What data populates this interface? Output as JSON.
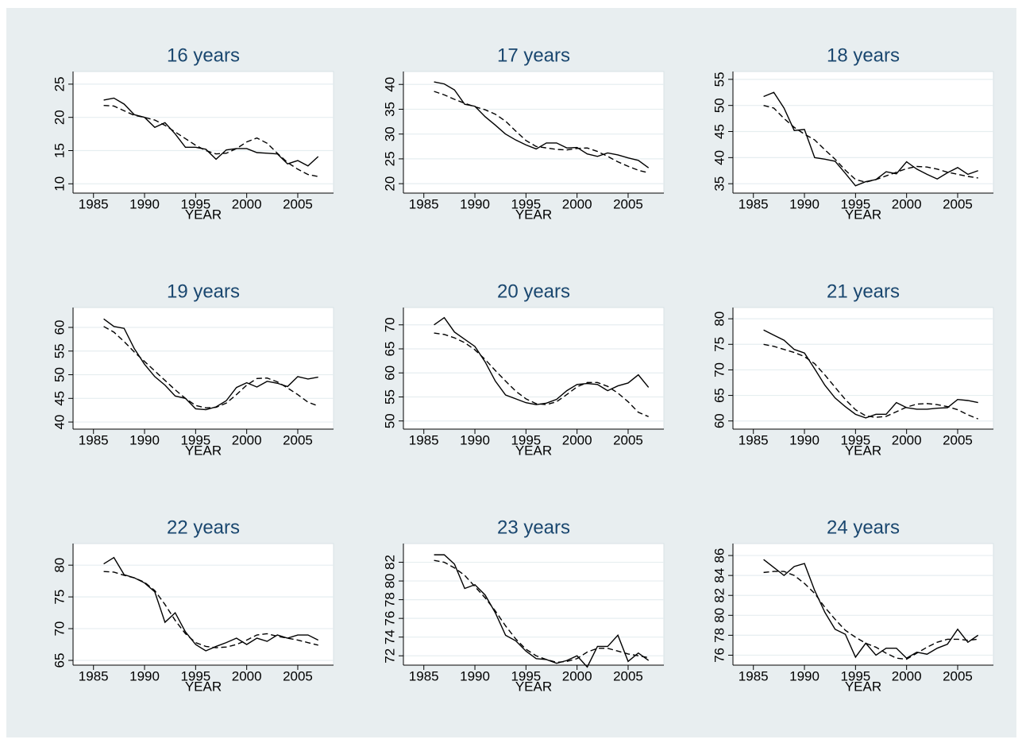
{
  "chart_data": [
    {
      "type": "line",
      "title": "16 years",
      "xlabel": "YEAR",
      "grid": true,
      "x": [
        1986,
        1987,
        1988,
        1989,
        1990,
        1991,
        1992,
        1993,
        1994,
        1995,
        1996,
        1997,
        1998,
        1999,
        2000,
        2001,
        2002,
        2003,
        2004,
        2005,
        2006,
        2007
      ],
      "xlim": [
        1983,
        2008.5
      ],
      "xticks": [
        1985,
        1990,
        1995,
        2000,
        2005
      ],
      "ylim": [
        8.6,
        26.9
      ],
      "yticks": [
        10,
        15,
        20,
        25
      ],
      "series": [
        {
          "color": "#000000",
          "style": "solid",
          "values": [
            22.6,
            22.9,
            22,
            20.4,
            20,
            18.5,
            19.2,
            17.5,
            15.5,
            15.5,
            15.2,
            13.7,
            15.1,
            15.3,
            15.3,
            14.7,
            14.6,
            14.5,
            13,
            13.5,
            12.7,
            14.1
          ]
        },
        {
          "color": "#000000",
          "style": "dashed",
          "values": [
            21.8,
            21.7,
            21,
            20.3,
            20,
            19.6,
            18.8,
            17.8,
            16.8,
            15.8,
            15,
            14.5,
            14.6,
            15.3,
            16.3,
            16.9,
            16.1,
            14.6,
            13.2,
            12.2,
            11.4,
            11.1
          ]
        }
      ]
    },
    {
      "type": "line",
      "title": "17 years",
      "xlabel": "YEAR",
      "grid": true,
      "x": [
        1986,
        1987,
        1988,
        1989,
        1990,
        1991,
        1992,
        1993,
        1994,
        1995,
        1996,
        1997,
        1998,
        1999,
        2000,
        2001,
        2002,
        2003,
        2004,
        2005,
        2006,
        2007
      ],
      "xlim": [
        1983,
        2008.5
      ],
      "xticks": [
        1985,
        1990,
        1995,
        2000,
        2005
      ],
      "ylim": [
        18.1,
        42.6
      ],
      "yticks": [
        20,
        25,
        30,
        35,
        40
      ],
      "series": [
        {
          "color": "#000000",
          "style": "solid",
          "values": [
            40.5,
            40.1,
            38.9,
            36,
            35.6,
            33.5,
            31.8,
            30,
            28.8,
            27.8,
            27,
            28.2,
            28.2,
            27.2,
            27.3,
            26,
            25.5,
            26.2,
            25.8,
            25.2,
            24.7,
            23.2
          ]
        },
        {
          "color": "#000000",
          "style": "dashed",
          "values": [
            38.6,
            37.9,
            37,
            36.2,
            35.5,
            34.9,
            34,
            32.6,
            30.6,
            28.7,
            27.5,
            27.2,
            26.9,
            26.8,
            27.1,
            27.2,
            26.5,
            25.5,
            24.4,
            23.5,
            22.7,
            22.2
          ]
        }
      ]
    },
    {
      "type": "line",
      "title": "18 years",
      "xlabel": "YEAR",
      "grid": true,
      "x": [
        1986,
        1987,
        1988,
        1989,
        1990,
        1991,
        1992,
        1993,
        1994,
        1995,
        1996,
        1997,
        1998,
        1999,
        2000,
        2001,
        2002,
        2003,
        2004,
        2005,
        2006,
        2007
      ],
      "xlim": [
        1983,
        2008.5
      ],
      "xticks": [
        1985,
        1990,
        1995,
        2000,
        2005
      ],
      "ylim": [
        33.2,
        56.5
      ],
      "yticks": [
        35,
        40,
        45,
        50,
        55
      ],
      "series": [
        {
          "color": "#000000",
          "style": "solid",
          "values": [
            51.7,
            52.5,
            49.5,
            45.2,
            45.4,
            40,
            39.7,
            39.3,
            37,
            34.6,
            35.4,
            35.8,
            37.3,
            36.9,
            39.2,
            37.8,
            36.8,
            35.9,
            37.1,
            38.1,
            36.8,
            37.5
          ]
        },
        {
          "color": "#000000",
          "style": "dashed",
          "values": [
            50,
            49.5,
            47.5,
            45.8,
            44.5,
            43.4,
            41.5,
            39.7,
            37.6,
            35.8,
            35.3,
            35.8,
            36.5,
            37.2,
            37.9,
            38.3,
            38.2,
            37.8,
            37.2,
            36.8,
            36.4,
            36.1
          ]
        }
      ]
    },
    {
      "type": "line",
      "title": "19 years",
      "xlabel": "YEAR",
      "grid": true,
      "x": [
        1986,
        1987,
        1988,
        1989,
        1990,
        1991,
        1992,
        1993,
        1994,
        1995,
        1996,
        1997,
        1998,
        1999,
        2000,
        2001,
        2002,
        2003,
        2004,
        2005,
        2006,
        2007
      ],
      "xlim": [
        1983,
        2008.5
      ],
      "xticks": [
        1985,
        1990,
        1995,
        2000,
        2005
      ],
      "ylim": [
        38.5,
        64.2
      ],
      "yticks": [
        40,
        45,
        50,
        55,
        60
      ],
      "series": [
        {
          "color": "#000000",
          "style": "solid",
          "values": [
            61.8,
            60.2,
            59.8,
            55.5,
            52.2,
            49.6,
            47.8,
            45.5,
            45,
            42.8,
            42.6,
            43.2,
            44.5,
            47.3,
            48.3,
            47.4,
            48.6,
            48.2,
            47.5,
            49.6,
            49.1,
            49.5
          ]
        },
        {
          "color": "#000000",
          "style": "dashed",
          "values": [
            60.2,
            59,
            57,
            54.8,
            52.8,
            50.8,
            48.8,
            46.8,
            45,
            43.5,
            43,
            43.1,
            44,
            45.8,
            47.8,
            49.2,
            49.3,
            48.5,
            47.2,
            45.8,
            44.2,
            43.4
          ]
        }
      ]
    },
    {
      "type": "line",
      "title": "20 years",
      "xlabel": "YEAR",
      "grid": true,
      "x": [
        1986,
        1987,
        1988,
        1989,
        1990,
        1991,
        1992,
        1993,
        1994,
        1995,
        1996,
        1997,
        1998,
        1999,
        2000,
        2001,
        2002,
        2003,
        2004,
        2005,
        2006,
        2007
      ],
      "xlim": [
        1983,
        2008.5
      ],
      "xticks": [
        1985,
        1990,
        1995,
        2000,
        2005
      ],
      "ylim": [
        48.3,
        73.6
      ],
      "yticks": [
        50,
        55,
        60,
        65,
        70
      ],
      "series": [
        {
          "color": "#000000",
          "style": "solid",
          "values": [
            70,
            71.5,
            68.5,
            67,
            65.5,
            62.3,
            58.3,
            55.4,
            54.6,
            53.8,
            53.4,
            53.7,
            54.5,
            56.3,
            57.6,
            57.8,
            57.6,
            56.3,
            57.3,
            57.9,
            59.6,
            57
          ]
        },
        {
          "color": "#000000",
          "style": "dashed",
          "values": [
            68.3,
            68,
            67.3,
            66.3,
            64.8,
            62.8,
            60.5,
            58.3,
            56.2,
            54.6,
            53.6,
            53.4,
            54,
            55.5,
            57.1,
            58,
            58,
            57.2,
            55.8,
            54,
            51.8,
            50.9
          ]
        }
      ]
    },
    {
      "type": "line",
      "title": "21 years",
      "xlabel": "YEAR",
      "grid": true,
      "x": [
        1986,
        1987,
        1988,
        1989,
        1990,
        1991,
        1992,
        1993,
        1994,
        1995,
        1996,
        1997,
        1998,
        1999,
        2000,
        2001,
        2002,
        2003,
        2004,
        2005,
        2006,
        2007
      ],
      "xlim": [
        1983,
        2008.5
      ],
      "xticks": [
        1985,
        1990,
        1995,
        2000,
        2005
      ],
      "ylim": [
        58.4,
        82.2
      ],
      "yticks": [
        60,
        65,
        70,
        75,
        80
      ],
      "series": [
        {
          "color": "#000000",
          "style": "solid",
          "values": [
            77.8,
            76.8,
            75.8,
            74,
            73.3,
            70.2,
            67,
            64.5,
            62.8,
            61.3,
            60.6,
            61.3,
            61.3,
            63.6,
            62.6,
            62.3,
            62.3,
            62.5,
            62.6,
            64.2,
            64,
            63.6
          ]
        },
        {
          "color": "#000000",
          "style": "dashed",
          "values": [
            75,
            74.6,
            74,
            73.4,
            72.6,
            71.2,
            69,
            66.6,
            64.2,
            62.2,
            61,
            60.7,
            60.9,
            61.8,
            62.7,
            63.3,
            63.4,
            63.2,
            62.8,
            62.2,
            61.2,
            60.4
          ]
        }
      ]
    },
    {
      "type": "line",
      "title": "22 years",
      "xlabel": "YEAR",
      "grid": true,
      "x": [
        1986,
        1987,
        1988,
        1989,
        1990,
        1991,
        1992,
        1993,
        1994,
        1995,
        1996,
        1997,
        1998,
        1999,
        2000,
        2001,
        2002,
        2003,
        2004,
        2005,
        2006,
        2007
      ],
      "xlim": [
        1983,
        2008.5
      ],
      "xticks": [
        1985,
        1990,
        1995,
        2000,
        2005
      ],
      "ylim": [
        64.25,
        83.4
      ],
      "yticks": [
        65,
        70,
        75,
        80
      ],
      "series": [
        {
          "color": "#000000",
          "style": "solid",
          "values": [
            80.2,
            81.2,
            78.5,
            78,
            77.2,
            75.8,
            71,
            72.5,
            69.5,
            67.5,
            66.5,
            67.2,
            67.8,
            68.5,
            67.5,
            68.5,
            68,
            69,
            68.5,
            69,
            69,
            68.2
          ]
        },
        {
          "color": "#000000",
          "style": "dashed",
          "values": [
            79,
            78.9,
            78.4,
            78,
            77.3,
            76,
            73.8,
            71.3,
            69.2,
            67.8,
            67.2,
            67,
            67.1,
            67.5,
            68.2,
            69,
            69.2,
            68.8,
            68.5,
            68.2,
            67.8,
            67.4
          ]
        }
      ]
    },
    {
      "type": "line",
      "title": "23 years",
      "xlabel": "YEAR",
      "grid": true,
      "x": [
        1986,
        1987,
        1988,
        1989,
        1990,
        1991,
        1992,
        1993,
        1994,
        1995,
        1996,
        1997,
        1998,
        1999,
        2000,
        2001,
        2002,
        2003,
        2004,
        2005,
        2006,
        2007
      ],
      "xlim": [
        1983,
        2008.5
      ],
      "xticks": [
        1985,
        1990,
        1995,
        2000,
        2005
      ],
      "ylim": [
        71,
        84
      ],
      "yticks": [
        72,
        74,
        76,
        78,
        80,
        82
      ],
      "series": [
        {
          "color": "#000000",
          "style": "solid",
          "values": [
            82.8,
            82.8,
            81.8,
            79.2,
            79.6,
            78.5,
            76.6,
            74.2,
            73.6,
            72.5,
            71.7,
            71.6,
            71.2,
            71.5,
            72,
            70.8,
            73,
            73,
            74.2,
            71.4,
            72.3,
            71.5
          ]
        },
        {
          "color": "#000000",
          "style": "dashed",
          "values": [
            82.2,
            82,
            81.4,
            80.6,
            79.4,
            78.2,
            76.8,
            75.2,
            73.8,
            72.7,
            72,
            71.6,
            71.3,
            71.4,
            71.7,
            72.4,
            72.8,
            72.8,
            72.5,
            72.2,
            72,
            71.8
          ]
        }
      ]
    },
    {
      "type": "line",
      "title": "24 years",
      "xlabel": "YEAR",
      "grid": true,
      "x": [
        1986,
        1987,
        1988,
        1989,
        1990,
        1991,
        1992,
        1993,
        1994,
        1995,
        1996,
        1997,
        1998,
        1999,
        2000,
        2001,
        2002,
        2003,
        2004,
        2005,
        2006,
        2007
      ],
      "xlim": [
        1983,
        2008.5
      ],
      "xticks": [
        1985,
        1990,
        1995,
        2000,
        2005
      ],
      "ylim": [
        75,
        87.2
      ],
      "yticks": [
        76,
        78,
        80,
        82,
        84,
        86
      ],
      "series": [
        {
          "color": "#000000",
          "style": "solid",
          "values": [
            85.6,
            84.8,
            84,
            84.9,
            85.2,
            82.5,
            80.3,
            78.6,
            78.1,
            75.8,
            77.2,
            76,
            76.7,
            76.7,
            75.7,
            76.3,
            76.1,
            76.7,
            77.1,
            78.6,
            77.3,
            78
          ]
        },
        {
          "color": "#000000",
          "style": "dashed",
          "values": [
            84.3,
            84.4,
            84.4,
            84,
            83.2,
            82.2,
            80.8,
            79.6,
            78.5,
            77.8,
            77.2,
            76.8,
            76.2,
            75.7,
            75.6,
            76.2,
            76.8,
            77.3,
            77.6,
            77.6,
            77.5,
            77.6
          ]
        }
      ]
    }
  ]
}
